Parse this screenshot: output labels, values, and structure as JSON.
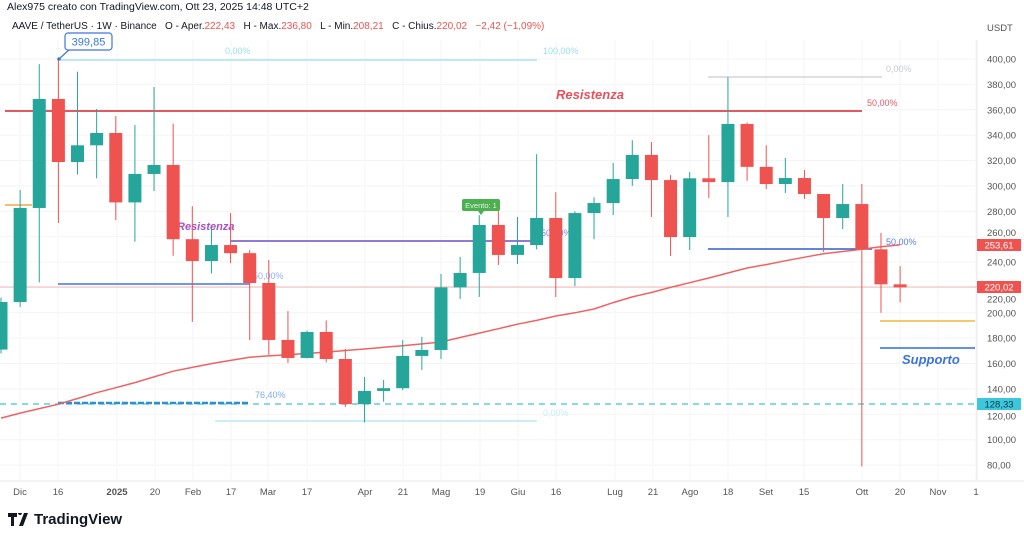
{
  "header": {
    "title": "Alex975 creato con TradingView.com, Ott 23, 2025 14:48 UTC+2",
    "symbol": "AAVE / TetherUS · 1W · Binance",
    "open_label": "O - Aper.",
    "open": "222,43",
    "high_label": "H - Max.",
    "high": "236,80",
    "low_label": "L - Min.",
    "low": "208,21",
    "close_label": "C - Chius.",
    "close": "220,02",
    "change": "−2,42 (−1,09%)"
  },
  "logo": "TradingView",
  "colors": {
    "up": "#26a69a",
    "down": "#ef5350",
    "ma": "#f06262",
    "resistance": "#e05a63",
    "support": "#2f6fe0",
    "fib": "#8fd8e6",
    "accent_label": "#ef5350",
    "low_label": "#3cc7dc"
  },
  "chart_data": {
    "type": "candlestick",
    "symbol": "AAVE / TetherUS",
    "interval": "1W",
    "currency": "USDT",
    "ylim": [
      65,
      420
    ],
    "y_ticks": [
      "400,00",
      "380,00",
      "360,00",
      "340,00",
      "320,00",
      "300,00",
      "280,00",
      "260,00",
      "240,00",
      "220,00",
      "200,00",
      "180,00",
      "160,00",
      "140,00",
      "120,00",
      "100,00",
      "80,00"
    ],
    "y_tick_values": [
      400,
      380,
      360,
      340,
      320,
      300,
      280,
      260,
      240,
      220,
      200,
      180,
      160,
      140,
      120,
      100,
      80
    ],
    "x_ticks": [
      "Dic",
      "16",
      "2025",
      "20",
      "Feb",
      "17",
      "Mar",
      "17",
      "Apr",
      "21",
      "Mag",
      "19",
      "Giu",
      "16",
      "Lug",
      "21",
      "Ago",
      "18",
      "Set",
      "15",
      "Ott",
      "20",
      "Nov",
      "1"
    ],
    "grid": true,
    "candles": [
      {
        "d": "2024-11-25",
        "o": 171,
        "h": 212,
        "l": 168,
        "c": 208.5
      },
      {
        "d": "2024-12-02",
        "o": 208.5,
        "h": 296.8,
        "l": 204.6,
        "c": 282.6
      },
      {
        "d": "2024-12-09",
        "o": 282.6,
        "h": 396,
        "l": 224,
        "c": 368.5
      },
      {
        "d": "2024-12-16",
        "o": 368.5,
        "h": 399.85,
        "l": 270.8,
        "c": 318.8
      },
      {
        "d": "2024-12-23",
        "o": 318.8,
        "h": 390,
        "l": 309,
        "c": 332
      },
      {
        "d": "2024-12-30",
        "o": 332,
        "h": 360.6,
        "l": 306,
        "c": 341.7
      },
      {
        "d": "2025-01-06",
        "o": 341.7,
        "h": 355,
        "l": 273,
        "c": 287
      },
      {
        "d": "2025-01-13",
        "o": 287,
        "h": 348,
        "l": 256,
        "c": 309.4
      },
      {
        "d": "2025-01-20",
        "o": 309.4,
        "h": 378,
        "l": 296,
        "c": 316.5
      },
      {
        "d": "2025-01-27",
        "o": 316.5,
        "h": 349,
        "l": 245,
        "c": 258
      },
      {
        "d": "2025-02-03",
        "o": 258,
        "h": 284,
        "l": 192.8,
        "c": 240.8
      },
      {
        "d": "2025-02-10",
        "o": 240.8,
        "h": 267.6,
        "l": 231,
        "c": 253.4
      },
      {
        "d": "2025-02-17",
        "o": 253.4,
        "h": 278.6,
        "l": 239,
        "c": 247
      },
      {
        "d": "2025-02-24",
        "o": 247,
        "h": 249.5,
        "l": 178.6,
        "c": 223.5
      },
      {
        "d": "2025-03-03",
        "o": 223.5,
        "h": 241.6,
        "l": 166.7,
        "c": 178.6
      },
      {
        "d": "2025-03-10",
        "o": 178.6,
        "h": 201.4,
        "l": 160.4,
        "c": 164.4
      },
      {
        "d": "2025-03-17",
        "o": 164.4,
        "h": 186,
        "l": 164,
        "c": 184.9
      },
      {
        "d": "2025-03-24",
        "o": 184.9,
        "h": 194,
        "l": 161,
        "c": 163.6
      },
      {
        "d": "2025-03-31",
        "o": 163.6,
        "h": 171.5,
        "l": 125.8,
        "c": 128
      },
      {
        "d": "2025-04-07",
        "o": 128,
        "h": 149.4,
        "l": 113.6,
        "c": 138.4
      },
      {
        "d": "2025-04-14",
        "o": 138.4,
        "h": 147,
        "l": 130,
        "c": 140.6
      },
      {
        "d": "2025-04-21",
        "o": 140.6,
        "h": 178.6,
        "l": 139,
        "c": 166
      },
      {
        "d": "2025-04-28",
        "o": 166,
        "h": 181,
        "l": 155,
        "c": 170.7
      },
      {
        "d": "2025-05-05",
        "o": 170.7,
        "h": 230.6,
        "l": 163.6,
        "c": 220
      },
      {
        "d": "2025-05-12",
        "o": 220,
        "h": 244,
        "l": 211,
        "c": 231.4
      },
      {
        "d": "2025-05-19",
        "o": 231.4,
        "h": 277,
        "l": 212.5,
        "c": 269.2
      },
      {
        "d": "2025-05-26",
        "o": 269.2,
        "h": 282.6,
        "l": 237.7,
        "c": 245.6
      },
      {
        "d": "2025-06-02",
        "o": 245.6,
        "h": 275.5,
        "l": 238.5,
        "c": 253.4
      },
      {
        "d": "2025-06-09",
        "o": 253.4,
        "h": 325,
        "l": 250,
        "c": 274.7
      },
      {
        "d": "2025-06-16",
        "o": 274.7,
        "h": 295,
        "l": 212.5,
        "c": 227.4
      },
      {
        "d": "2025-06-23",
        "o": 227.4,
        "h": 280,
        "l": 221,
        "c": 278.6
      },
      {
        "d": "2025-06-30",
        "o": 278.6,
        "h": 291,
        "l": 258,
        "c": 286.5
      },
      {
        "d": "2025-07-07",
        "o": 286.5,
        "h": 318,
        "l": 277,
        "c": 305.4
      },
      {
        "d": "2025-07-14",
        "o": 305.4,
        "h": 336,
        "l": 300,
        "c": 324.4
      },
      {
        "d": "2025-07-21",
        "o": 324.4,
        "h": 334.6,
        "l": 275.5,
        "c": 304.6
      },
      {
        "d": "2025-07-28",
        "o": 304.6,
        "h": 308.6,
        "l": 244.8,
        "c": 259.7
      },
      {
        "d": "2025-08-04",
        "o": 259.7,
        "h": 311,
        "l": 249.5,
        "c": 306
      },
      {
        "d": "2025-08-11",
        "o": 306,
        "h": 340,
        "l": 290.5,
        "c": 303
      },
      {
        "d": "2025-08-18",
        "o": 303,
        "h": 385.8,
        "l": 275.5,
        "c": 348.8
      },
      {
        "d": "2025-08-25",
        "o": 348.8,
        "h": 350,
        "l": 304,
        "c": 315
      },
      {
        "d": "2025-09-01",
        "o": 315,
        "h": 332,
        "l": 297.5,
        "c": 301.5
      },
      {
        "d": "2025-09-08",
        "o": 301.5,
        "h": 322,
        "l": 294.4,
        "c": 306.2
      },
      {
        "d": "2025-09-15",
        "o": 306.2,
        "h": 312.5,
        "l": 289.7,
        "c": 293.6
      },
      {
        "d": "2025-09-22",
        "o": 293.6,
        "h": 293.6,
        "l": 248,
        "c": 274.7
      },
      {
        "d": "2025-09-29",
        "o": 274.7,
        "h": 301.5,
        "l": 266,
        "c": 285.7
      },
      {
        "d": "2025-10-06",
        "o": 285.7,
        "h": 301.5,
        "l": 79,
        "c": 250
      },
      {
        "d": "2025-10-13",
        "o": 250,
        "h": 263,
        "l": 200,
        "c": 222.43
      },
      {
        "d": "2025-10-20",
        "o": 222.43,
        "h": 236.8,
        "l": 208.21,
        "c": 220.02
      }
    ],
    "moving_average": [
      117,
      121,
      124.5,
      128,
      132.5,
      137,
      141,
      145,
      149.5,
      154,
      157,
      160,
      162.5,
      165,
      166,
      167,
      168,
      169,
      170.3,
      171.5,
      172.8,
      174,
      175.5,
      177,
      180.5,
      184,
      187.5,
      191,
      194,
      197.5,
      200,
      203,
      208,
      212.5,
      216,
      220,
      223.7,
      227.4,
      231.4,
      235.3,
      238,
      241,
      243.8,
      246.5,
      248.3,
      250,
      252,
      253.61
    ],
    "price_labels": {
      "ma": "253,61",
      "last": "220,02",
      "low_line": "128,33"
    },
    "annotations": {
      "high_callout": "399,85",
      "resistance_text": "Resistenza",
      "resistance_mid_text": "Resistenza",
      "support_text": "Supporto",
      "event_badge": "Evento: 1",
      "fib_top_0": "0,00%",
      "fib_top_100": "100,00%",
      "fib_red_50": "50,00%",
      "fib_gray_0": "0,00%",
      "fib_blue_50_right": "50,00%",
      "fib_blue_50_left": "50,00%",
      "fib_mid_50": "50,00%",
      "fib_76": "76,40%",
      "fib_bottom_0": "0,00%"
    }
  }
}
